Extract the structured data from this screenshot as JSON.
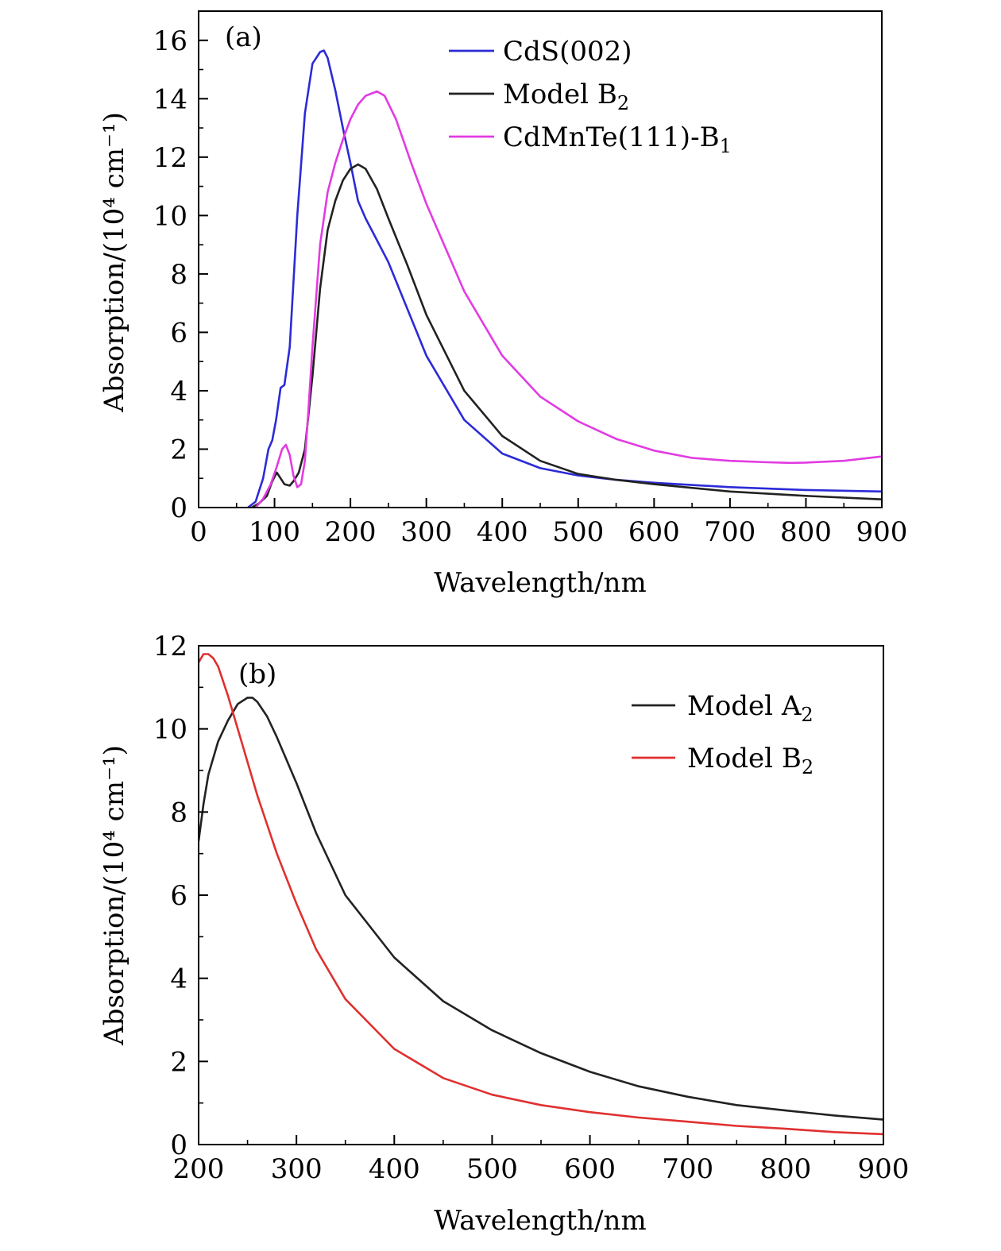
{
  "chart_data": [
    {
      "type": "line",
      "panel_label": "(a)",
      "xlabel": "Wavelength/nm",
      "ylabel": "Absorption/(10⁴ cm⁻¹)",
      "xlim": [
        0,
        900
      ],
      "ylim": [
        0,
        17
      ],
      "xticks": [
        0,
        100,
        200,
        300,
        400,
        500,
        600,
        700,
        800,
        900
      ],
      "yticks": [
        0,
        2,
        4,
        6,
        8,
        10,
        12,
        14,
        16
      ],
      "legend_position": "top-right",
      "grid": false,
      "series": [
        {
          "name": "CdS(002)",
          "label_main": "CdS(002)",
          "label_sub": "",
          "color": "#2b2bd8",
          "x": [
            65,
            75,
            85,
            92,
            97,
            102,
            108,
            113,
            120,
            130,
            140,
            150,
            160,
            165,
            170,
            180,
            190,
            200,
            210,
            220,
            230,
            250,
            275,
            300,
            350,
            400,
            450,
            500,
            550,
            600,
            700,
            800,
            900
          ],
          "y": [
            0,
            0.2,
            1.0,
            2.0,
            2.3,
            3.0,
            4.1,
            4.2,
            5.5,
            10.0,
            13.5,
            15.2,
            15.6,
            15.65,
            15.4,
            14.3,
            13.0,
            11.8,
            10.5,
            9.9,
            9.4,
            8.4,
            6.8,
            5.2,
            3.0,
            1.85,
            1.35,
            1.1,
            0.95,
            0.85,
            0.7,
            0.6,
            0.55
          ]
        },
        {
          "name": "Model B2",
          "label_main": "Model B",
          "label_sub": "2",
          "color": "#222222",
          "x": [
            70,
            80,
            90,
            97,
            103,
            108,
            113,
            120,
            125,
            132,
            140,
            150,
            160,
            170,
            180,
            190,
            200,
            210,
            220,
            235,
            250,
            275,
            300,
            350,
            400,
            450,
            500,
            550,
            600,
            700,
            800,
            900
          ],
          "y": [
            0,
            0.15,
            0.4,
            0.9,
            1.2,
            1.0,
            0.8,
            0.75,
            0.9,
            1.2,
            2.0,
            4.5,
            7.5,
            9.5,
            10.5,
            11.2,
            11.6,
            11.75,
            11.6,
            10.9,
            9.9,
            8.3,
            6.6,
            4.0,
            2.45,
            1.6,
            1.15,
            0.95,
            0.8,
            0.55,
            0.4,
            0.28
          ]
        },
        {
          "name": "CdMnTe(111)-B1",
          "label_main": "CdMnTe(111)-B",
          "label_sub": "1",
          "color": "#e23be2",
          "x": [
            75,
            85,
            95,
            103,
            110,
            115,
            120,
            125,
            130,
            135,
            140,
            145,
            150,
            160,
            170,
            180,
            190,
            200,
            210,
            220,
            230,
            235,
            245,
            260,
            280,
            300,
            350,
            400,
            450,
            500,
            550,
            600,
            650,
            700,
            750,
            780,
            800,
            850,
            900
          ],
          "y": [
            0,
            0.3,
            0.8,
            1.4,
            2.0,
            2.15,
            1.8,
            1.1,
            0.7,
            0.8,
            1.6,
            3.5,
            5.5,
            9.0,
            10.8,
            11.8,
            12.6,
            13.3,
            13.8,
            14.1,
            14.2,
            14.25,
            14.1,
            13.3,
            11.8,
            10.4,
            7.4,
            5.2,
            3.8,
            2.95,
            2.35,
            1.95,
            1.7,
            1.6,
            1.55,
            1.53,
            1.54,
            1.6,
            1.75
          ]
        }
      ]
    },
    {
      "type": "line",
      "panel_label": "(b)",
      "xlabel": "Wavelength/nm",
      "ylabel": "Absorption/(10⁴ cm⁻¹)",
      "xlim": [
        200,
        900
      ],
      "ylim": [
        0,
        12
      ],
      "xticks": [
        200,
        300,
        400,
        500,
        600,
        700,
        800,
        900
      ],
      "yticks": [
        0,
        2,
        4,
        6,
        8,
        10,
        12
      ],
      "legend_position": "top-right",
      "grid": false,
      "series": [
        {
          "name": "Model A2",
          "label_main": "Model A",
          "label_sub": "2",
          "color": "#222222",
          "x": [
            200,
            205,
            210,
            220,
            230,
            240,
            250,
            255,
            260,
            270,
            280,
            300,
            320,
            350,
            400,
            450,
            500,
            550,
            600,
            650,
            700,
            750,
            800,
            850,
            900
          ],
          "y": [
            7.3,
            8.2,
            8.9,
            9.7,
            10.2,
            10.6,
            10.75,
            10.75,
            10.65,
            10.3,
            9.8,
            8.7,
            7.5,
            6.0,
            4.5,
            3.45,
            2.75,
            2.2,
            1.75,
            1.4,
            1.15,
            0.95,
            0.82,
            0.7,
            0.6
          ]
        },
        {
          "name": "Model B2",
          "label_main": "Model B",
          "label_sub": "2",
          "color": "#e03030",
          "x": [
            200,
            205,
            210,
            215,
            220,
            230,
            240,
            250,
            260,
            270,
            280,
            300,
            320,
            350,
            400,
            450,
            500,
            550,
            600,
            650,
            700,
            750,
            800,
            850,
            900
          ],
          "y": [
            11.6,
            11.8,
            11.8,
            11.7,
            11.5,
            10.8,
            10.0,
            9.2,
            8.4,
            7.7,
            7.0,
            5.8,
            4.7,
            3.5,
            2.3,
            1.6,
            1.2,
            0.95,
            0.78,
            0.65,
            0.55,
            0.45,
            0.38,
            0.3,
            0.25
          ]
        }
      ]
    }
  ]
}
